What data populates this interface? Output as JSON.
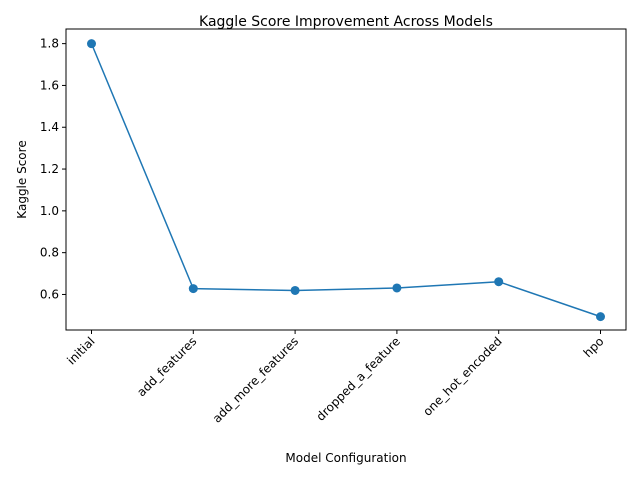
{
  "chart_data": {
    "type": "line",
    "title": "Kaggle Score Improvement Across Models",
    "xlabel": "Model Configuration",
    "ylabel": "Kaggle Score",
    "categories": [
      "initial",
      "add_features",
      "add_more_features",
      "dropped_a_feature",
      "one_hot_encoded",
      "hpo"
    ],
    "series": [
      {
        "values": [
          1.8,
          0.628,
          0.619,
          0.631,
          0.661,
          0.494
        ],
        "color": "#1f77b4",
        "marker": "circle"
      }
    ],
    "ylim": [
      0.43,
      1.87
    ],
    "yticks": [
      0.6,
      0.8,
      1.0,
      1.2,
      1.4,
      1.6,
      1.8
    ],
    "ytick_labels": [
      "0.6",
      "0.8",
      "1.0",
      "1.2",
      "1.4",
      "1.6",
      "1.8"
    ],
    "xtick_rotation_deg": 45,
    "grid": false,
    "legend": "none"
  }
}
